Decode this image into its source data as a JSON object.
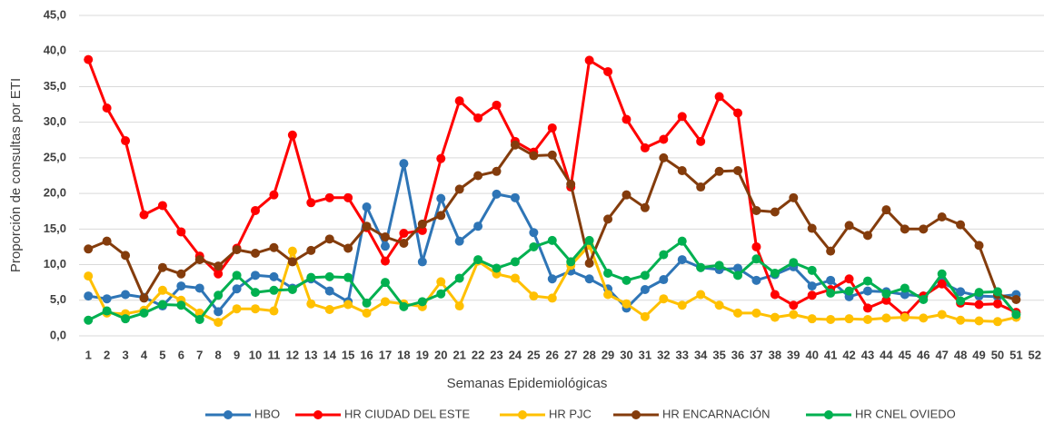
{
  "chart_data": {
    "type": "line",
    "y_label": "Proporción de consultas por ETI",
    "x_label": "Semanas Epidemiológicas",
    "categories": [
      "1",
      "2",
      "3",
      "4",
      "5",
      "6",
      "7",
      "8",
      "9",
      "10",
      "11",
      "12",
      "13",
      "14",
      "15",
      "16",
      "17",
      "18",
      "19",
      "20",
      "21",
      "22",
      "23",
      "24",
      "25",
      "26",
      "27",
      "28",
      "29",
      "30",
      "31",
      "32",
      "33",
      "34",
      "35",
      "36",
      "37",
      "38",
      "39",
      "40",
      "41",
      "42",
      "43",
      "44",
      "45",
      "46",
      "47",
      "48",
      "49",
      "50",
      "51",
      "52"
    ],
    "ylim": [
      0,
      45
    ],
    "yticks": [
      {
        "value": 0,
        "label": "0,0"
      },
      {
        "value": 5,
        "label": "5,0"
      },
      {
        "value": 10,
        "label": "10,0"
      },
      {
        "value": 15,
        "label": "15,0"
      },
      {
        "value": 20,
        "label": "20,0"
      },
      {
        "value": 25,
        "label": "25,0"
      },
      {
        "value": 30,
        "label": "30,0"
      },
      {
        "value": 35,
        "label": "35,0"
      },
      {
        "value": 40,
        "label": "40,0"
      },
      {
        "value": 45,
        "label": "45,0"
      }
    ],
    "grid": true,
    "legend": "bottom",
    "series": [
      {
        "name": "HBO",
        "color": "#2e75b6",
        "values": [
          5.6,
          5.2,
          5.8,
          5.4,
          4.2,
          7.0,
          6.7,
          3.4,
          6.6,
          8.5,
          8.3,
          6.7,
          8.0,
          6.3,
          4.8,
          18.1,
          12.6,
          24.2,
          10.4,
          19.3,
          13.3,
          15.4,
          19.9,
          19.4,
          14.5,
          8.0,
          9.1,
          8.0,
          6.6,
          3.9,
          6.5,
          7.9,
          10.7,
          9.6,
          9.3,
          9.5,
          7.8,
          8.6,
          9.7,
          7.0,
          7.8,
          5.5,
          6.3,
          6.2,
          5.8,
          5.6,
          7.5,
          6.2,
          5.6,
          5.5,
          5.8,
          null
        ]
      },
      {
        "name": "HR CIUDAD DEL ESTE",
        "color": "#ff0000",
        "values": [
          38.8,
          32.0,
          27.4,
          17.0,
          18.3,
          14.6,
          11.2,
          8.7,
          12.3,
          17.6,
          19.8,
          28.2,
          18.7,
          19.4,
          19.4,
          15.2,
          10.5,
          14.4,
          14.8,
          24.9,
          33.0,
          30.6,
          32.4,
          27.3,
          25.8,
          29.2,
          20.9,
          38.7,
          37.1,
          30.4,
          26.4,
          27.6,
          30.8,
          27.3,
          33.6,
          31.3,
          12.5,
          5.8,
          4.3,
          5.7,
          6.5,
          8.0,
          3.9,
          5.0,
          2.8,
          5.6,
          7.3,
          4.6,
          4.4,
          4.5,
          3.3,
          null
        ]
      },
      {
        "name": "HR PJC",
        "color": "#ffc000",
        "values": [
          8.4,
          3.2,
          3.1,
          3.6,
          6.4,
          5.0,
          3.2,
          1.9,
          3.8,
          3.8,
          3.5,
          11.9,
          4.5,
          3.7,
          4.4,
          3.2,
          4.8,
          4.5,
          4.1,
          7.6,
          4.2,
          10.5,
          8.7,
          8.1,
          5.6,
          5.3,
          9.9,
          12.7,
          5.8,
          4.5,
          2.7,
          5.2,
          4.3,
          5.8,
          4.3,
          3.2,
          3.2,
          2.6,
          3.0,
          2.4,
          2.3,
          2.4,
          2.3,
          2.5,
          2.6,
          2.5,
          3.0,
          2.2,
          2.1,
          2.0,
          2.6,
          null
        ]
      },
      {
        "name": "HR ENCARNACIÓN",
        "color": "#843c0c",
        "values": [
          12.2,
          13.3,
          11.3,
          5.3,
          9.6,
          8.7,
          10.7,
          9.8,
          12.1,
          11.6,
          12.4,
          10.4,
          12.0,
          13.6,
          12.3,
          15.4,
          13.9,
          13.0,
          15.7,
          16.9,
          20.6,
          22.5,
          23.1,
          26.8,
          25.3,
          25.4,
          21.3,
          10.2,
          16.4,
          19.8,
          18.0,
          25.0,
          23.2,
          20.9,
          23.1,
          23.2,
          17.6,
          17.4,
          19.4,
          15.1,
          11.9,
          15.5,
          14.1,
          17.7,
          15.0,
          15.0,
          16.7,
          15.6,
          12.7,
          5.8,
          5.1,
          null
        ]
      },
      {
        "name": "HR CNEL OVIEDO",
        "color": "#00b050",
        "values": [
          2.2,
          3.5,
          2.4,
          3.2,
          4.4,
          4.3,
          2.3,
          5.7,
          8.5,
          6.1,
          6.4,
          6.5,
          8.2,
          8.3,
          8.2,
          4.6,
          7.5,
          4.1,
          4.8,
          5.9,
          8.1,
          10.7,
          9.5,
          10.4,
          12.5,
          13.4,
          10.4,
          13.4,
          8.8,
          7.8,
          8.5,
          11.4,
          13.3,
          9.6,
          9.9,
          8.5,
          10.8,
          8.8,
          10.3,
          9.2,
          6.0,
          6.3,
          7.7,
          5.9,
          6.7,
          5.1,
          8.7,
          4.9,
          6.1,
          6.2,
          3.0,
          null
        ]
      }
    ]
  }
}
